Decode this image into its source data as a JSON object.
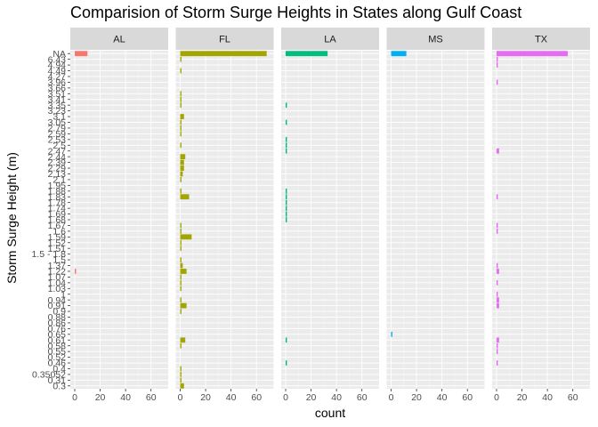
{
  "chart_data": {
    "type": "bar",
    "orientation": "horizontal",
    "faceted": true,
    "title": "Comparision of Storm Surge Heights in States along Gulf Coast",
    "xlabel": "count",
    "ylabel": "Storm Surge Height (m)",
    "xlim": [
      0,
      70
    ],
    "x_ticks": [
      0,
      20,
      40,
      60
    ],
    "grid": true,
    "legend": "none",
    "y_categories": [
      "0.3",
      "0.31",
      "0.35052",
      "0.4",
      "0.46",
      "0.52",
      "0.55",
      "0.58",
      "0.61",
      "0.65",
      "0.76",
      "0.86",
      "0.88",
      "0.9",
      "0.91",
      "0.94",
      "1.0",
      "1.03",
      "1.04",
      "1.07",
      "1.22",
      "1.37",
      "1.5",
      "1.5 - 1.8",
      "1.51",
      "1.52",
      "1.59",
      "1.6",
      "1.67",
      "1.68",
      "1.69",
      "1.74",
      "1.78",
      "1.83",
      "1.88",
      "1.95",
      "2.1",
      "2.13",
      "2.29",
      "2.39",
      "2.44",
      "2.47",
      "2.5",
      "2.53",
      "2.59",
      "2.79",
      "3.05",
      "3.1",
      "3.23",
      "3.35",
      "3.41",
      "3.51",
      "3.66",
      "3.96",
      "4.27",
      "4.49",
      "4.94",
      "6.43",
      "NA"
    ],
    "y_tick_labels": [
      "0.3",
      "0.31",
      "0.35052",
      "0.4",
      "0.46",
      "0.52",
      "0.55",
      "0.58",
      "0.61",
      "0.65",
      "0.76",
      "0.86",
      "0.88",
      "0.9",
      "0.91",
      "0.94",
      "1",
      "1.03",
      "1.04",
      "1.07",
      "1.22",
      "1.37",
      "1.5",
      "1.5 - 1.8",
      "1.51",
      "1.52",
      "1.59",
      "1.6",
      "1.67",
      "1.68",
      "1.69",
      "1.74",
      "1.78",
      "1.83",
      "1.88",
      "1.95",
      "2.1",
      "2.13",
      "2.29",
      "2.39",
      "2.44",
      "2.47",
      "2.5",
      "2.53",
      "2.59",
      "2.79",
      "3.05",
      "3.1",
      "3.23",
      "3.35",
      "3.41",
      "3.51",
      "3.66",
      "3.96",
      "4.27",
      "4.49",
      "4.94",
      "6.43",
      "NA"
    ],
    "panels": [
      {
        "name": "AL",
        "color": "#F8766D",
        "values": [
          0,
          0,
          0,
          0,
          0,
          0,
          0,
          0,
          0,
          0,
          0,
          0,
          0,
          0,
          0,
          0,
          0,
          0,
          0,
          0,
          1,
          0,
          0,
          0,
          0,
          0,
          0,
          0,
          0,
          0,
          0,
          0,
          0,
          0,
          0,
          0,
          0,
          0,
          0,
          0,
          0,
          0,
          0,
          0,
          0,
          0,
          0,
          0,
          0,
          0,
          0,
          0,
          0,
          0,
          0,
          0,
          0,
          0,
          10
        ]
      },
      {
        "name": "FL",
        "color": "#A3A500",
        "values": [
          3,
          1,
          1,
          1,
          0,
          0,
          0,
          1,
          4,
          0,
          0,
          0,
          0,
          1,
          5,
          1,
          0,
          1,
          1,
          1,
          5,
          2,
          1,
          0,
          1,
          1,
          9,
          1,
          1,
          0,
          0,
          0,
          0,
          7,
          1,
          0,
          1,
          2,
          3,
          3,
          4,
          0,
          1,
          0,
          1,
          1,
          1,
          3,
          0,
          1,
          1,
          1,
          0,
          0,
          0,
          1,
          0,
          1,
          68
        ]
      },
      {
        "name": "LA",
        "color": "#00BF7D",
        "values": [
          0,
          0,
          0,
          0,
          1,
          0,
          0,
          0,
          1,
          0,
          0,
          0,
          0,
          0,
          0,
          0,
          0,
          0,
          0,
          0,
          0,
          0,
          0,
          0,
          0,
          0,
          0,
          0,
          0,
          1,
          1,
          1,
          1,
          1,
          1,
          0,
          0,
          0,
          0,
          0,
          0,
          1,
          1,
          1,
          0,
          0,
          1,
          0,
          0,
          1,
          0,
          0,
          0,
          0,
          0,
          0,
          0,
          0,
          33
        ]
      },
      {
        "name": "MS",
        "color": "#00B0F6",
        "values": [
          0,
          0,
          0,
          0,
          0,
          0,
          0,
          0,
          0,
          1,
          0,
          0,
          0,
          0,
          0,
          0,
          0,
          0,
          0,
          0,
          0,
          0,
          0,
          0,
          0,
          0,
          0,
          0,
          0,
          0,
          0,
          0,
          0,
          0,
          0,
          0,
          0,
          0,
          0,
          0,
          0,
          0,
          0,
          0,
          0,
          0,
          0,
          0,
          0,
          0,
          0,
          0,
          0,
          0,
          0,
          0,
          0,
          0,
          12
        ]
      },
      {
        "name": "TX",
        "color": "#E76BF3",
        "values": [
          0,
          0,
          0,
          0,
          1,
          0,
          1,
          1,
          2,
          0,
          0,
          0,
          0,
          0,
          2,
          2,
          1,
          0,
          1,
          0,
          2,
          1,
          0,
          0,
          0,
          0,
          0,
          1,
          1,
          0,
          0,
          0,
          0,
          1,
          0,
          0,
          0,
          0,
          0,
          0,
          0,
          2,
          0,
          0,
          0,
          0,
          0,
          0,
          0,
          0,
          0,
          0,
          0,
          1,
          0,
          0,
          1,
          1,
          56
        ]
      }
    ]
  }
}
